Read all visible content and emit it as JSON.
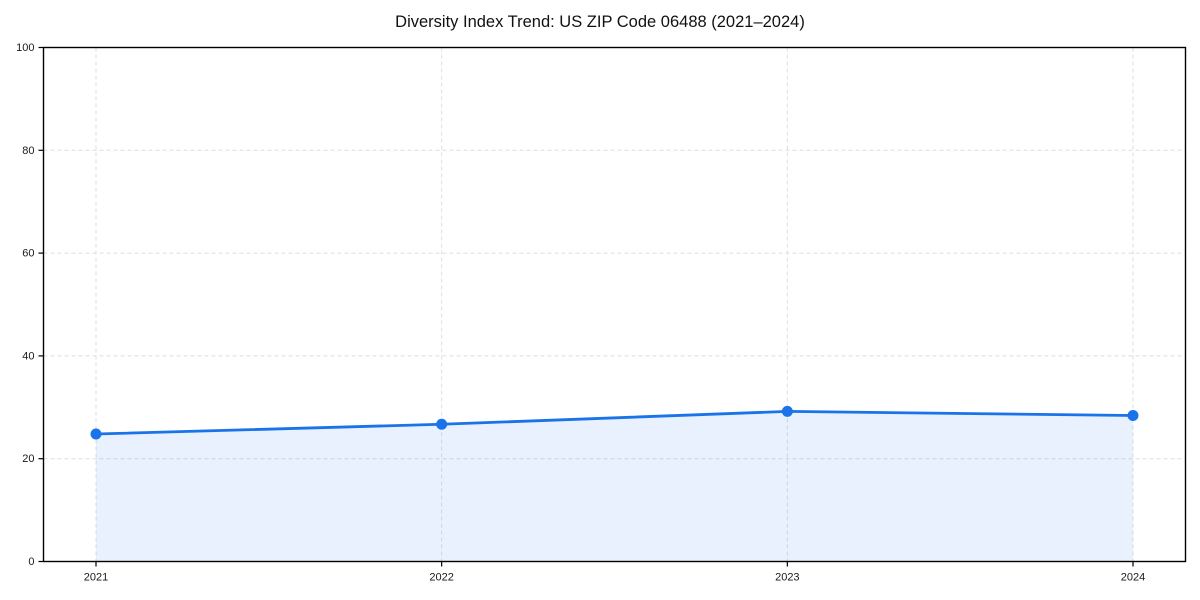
{
  "title": "Diversity Index Trend: US ZIP Code 06488 (2021–2024)",
  "chart_data": {
    "type": "line",
    "title": "Diversity Index Trend: US ZIP Code 06488 (2021–2024)",
    "categories": [
      "2021",
      "2022",
      "2023",
      "2024"
    ],
    "x": [
      2021,
      2022,
      2023,
      2024
    ],
    "series": [
      {
        "name": "Diversity Index",
        "values": [
          24.8,
          26.7,
          29.2,
          28.4
        ]
      }
    ],
    "xlabel": "",
    "ylabel": "",
    "ylim": [
      0,
      100
    ],
    "yticks": [
      0,
      20,
      40,
      60,
      80,
      100
    ],
    "grid": true,
    "grid_style": "dashed",
    "legend_position": "none",
    "area_fill": true,
    "colors": {
      "line": "#1a73e8",
      "marker": "#1a73e8",
      "fill": "#1a73e8",
      "fill_opacity": 0.1,
      "grid": "#dedede",
      "axis": "#000000",
      "tick_label": "#1a1a1a"
    }
  }
}
